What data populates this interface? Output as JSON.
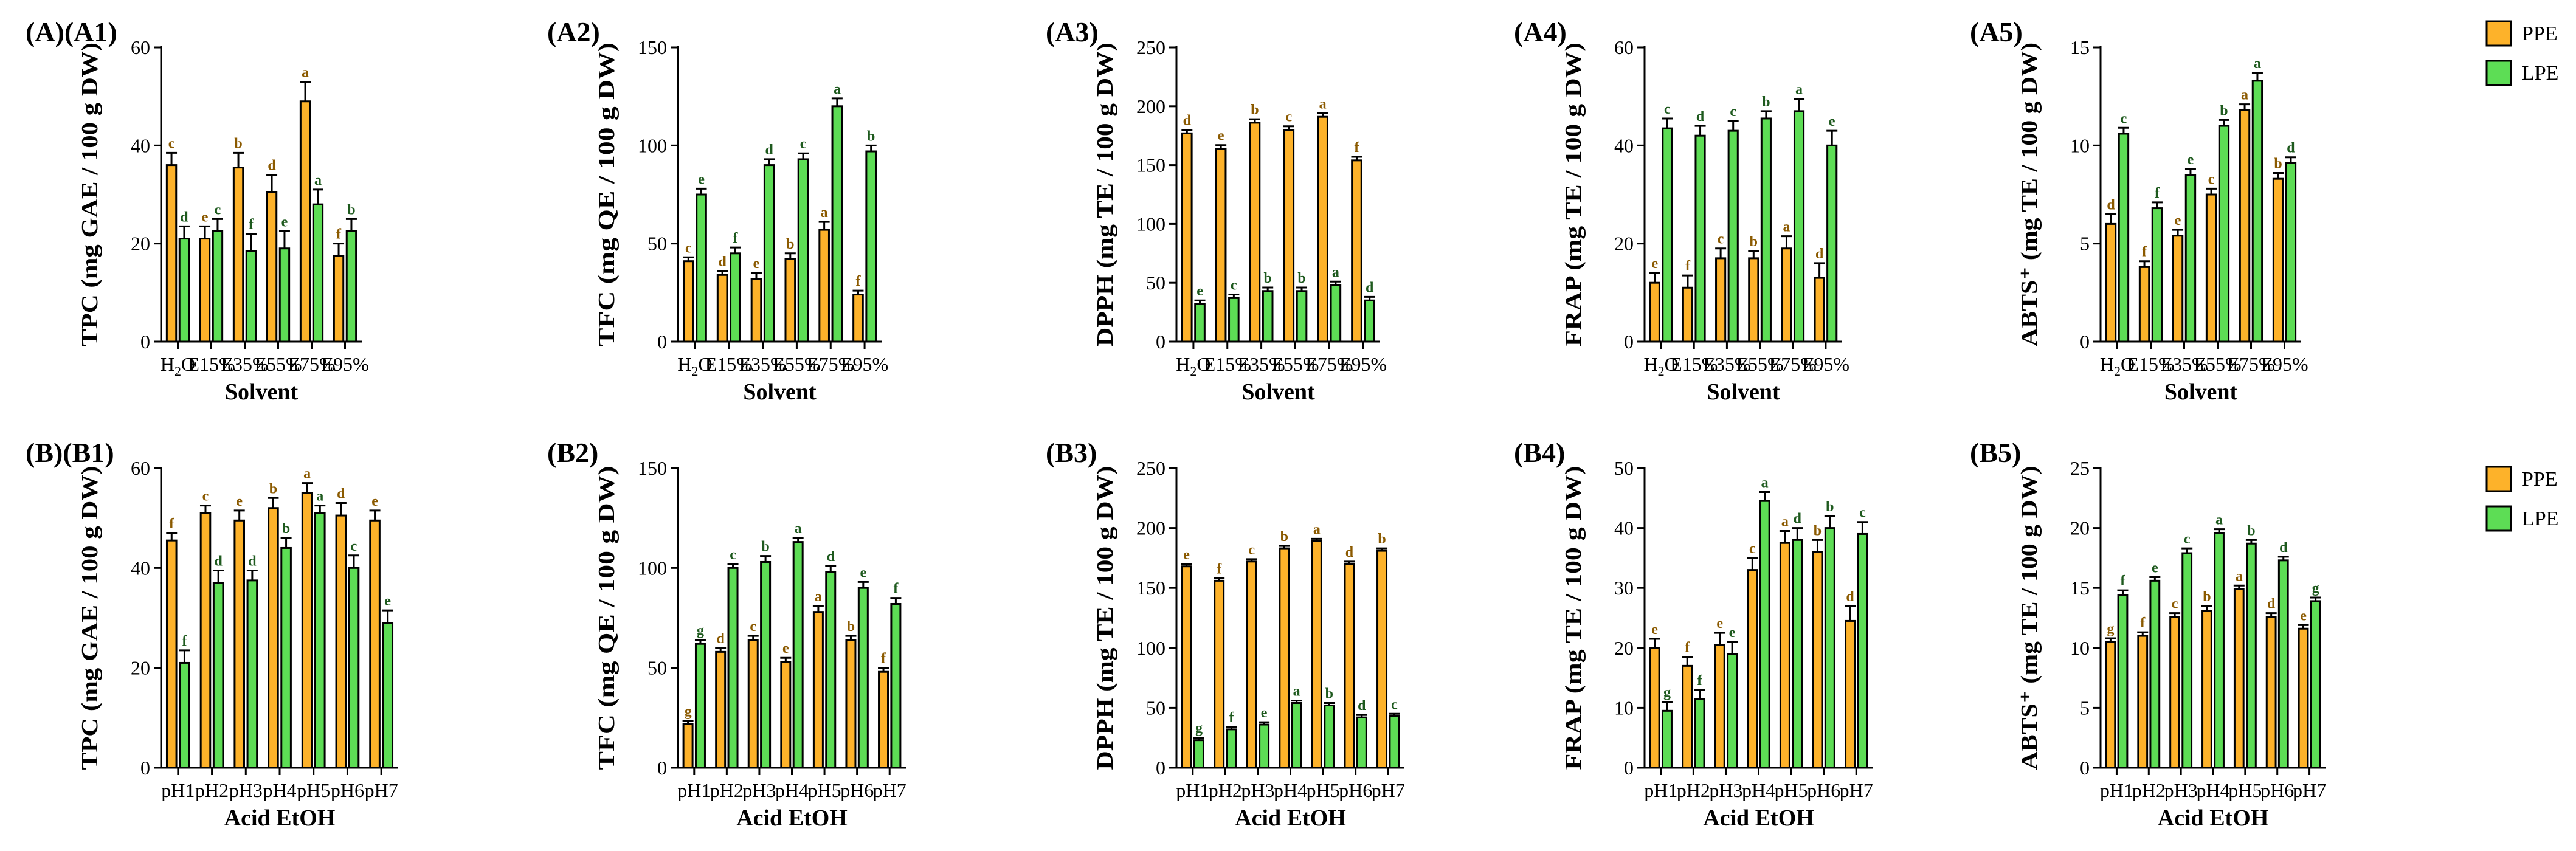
{
  "colors": {
    "ppe": "#FDB22A",
    "lpe": "#5DDD55",
    "ppe_letter": "#8B5A00",
    "lpe_letter": "#1E5A1E"
  },
  "legend": {
    "series": [
      "PPE",
      "LPE"
    ]
  },
  "chart_data": [
    {
      "id": "A1",
      "panel_label": "(A)(A1)",
      "type": "bar",
      "ylabel": "TPC (mg GAE / 100 g DW)",
      "xlabel": "Solvent",
      "categories": [
        "H₂O",
        "E15%",
        "E35%",
        "E55%",
        "E75%",
        "E95%"
      ],
      "ylim": [
        0,
        60
      ],
      "yticks": [
        0,
        20,
        40,
        60
      ],
      "series": [
        {
          "name": "PPE",
          "values": [
            36,
            21,
            35.5,
            30.5,
            49,
            17.5
          ],
          "errors": [
            2.5,
            2.5,
            3,
            3.5,
            4,
            2.5
          ],
          "letters": [
            "c",
            "e",
            "b",
            "d",
            "a",
            "f"
          ]
        },
        {
          "name": "LPE",
          "values": [
            21,
            22.5,
            18.5,
            19,
            28,
            22.5
          ],
          "errors": [
            2.5,
            2.5,
            3.5,
            3.5,
            3,
            2.5
          ],
          "letters": [
            "d",
            "c",
            "f",
            "e",
            "a",
            "b"
          ]
        }
      ]
    },
    {
      "id": "A2",
      "panel_label": "(A2)",
      "type": "bar",
      "ylabel": "TFC (mg QE / 100 g DW)",
      "xlabel": "Solvent",
      "categories": [
        "H₂O",
        "E15%",
        "E35%",
        "E55%",
        "E75%",
        "E95%"
      ],
      "ylim": [
        0,
        150
      ],
      "yticks": [
        0,
        50,
        100,
        150
      ],
      "series": [
        {
          "name": "PPE",
          "values": [
            41,
            34,
            32,
            42,
            57,
            24
          ],
          "errors": [
            2,
            2,
            3,
            3,
            4,
            2
          ],
          "letters": [
            "c",
            "d",
            "e",
            "b",
            "a",
            "f"
          ]
        },
        {
          "name": "LPE",
          "values": [
            75,
            45,
            90,
            93,
            120,
            97
          ],
          "errors": [
            3,
            3,
            3,
            3,
            4,
            3
          ],
          "letters": [
            "e",
            "f",
            "d",
            "c",
            "a",
            "b"
          ]
        }
      ]
    },
    {
      "id": "A3",
      "panel_label": "(A3)",
      "type": "bar",
      "ylabel": "DPPH (mg TE / 100 g DW)",
      "xlabel": "Solvent",
      "categories": [
        "H₂O",
        "E15%",
        "E35%",
        "E55%",
        "E75%",
        "E95%"
      ],
      "ylim": [
        0,
        250
      ],
      "yticks": [
        0,
        50,
        100,
        150,
        200,
        250
      ],
      "series": [
        {
          "name": "PPE",
          "values": [
            177,
            164,
            186,
            180,
            191,
            154
          ],
          "errors": [
            3,
            3,
            3,
            3,
            3,
            3
          ],
          "letters": [
            "d",
            "e",
            "b",
            "c",
            "a",
            "f"
          ]
        },
        {
          "name": "LPE",
          "values": [
            32,
            37,
            43,
            43,
            48,
            35
          ],
          "errors": [
            3,
            3,
            3,
            3,
            3,
            3
          ],
          "letters": [
            "e",
            "c",
            "b",
            "b",
            "a",
            "d"
          ]
        }
      ]
    },
    {
      "id": "A4",
      "panel_label": "(A4)",
      "type": "bar",
      "ylabel": "FRAP (mg TE / 100 g DW)",
      "xlabel": "Solvent",
      "categories": [
        "H₂O",
        "E15%",
        "E35%",
        "E55%",
        "E75%",
        "E95%"
      ],
      "ylim": [
        0,
        60
      ],
      "yticks": [
        0,
        20,
        40,
        60
      ],
      "series": [
        {
          "name": "PPE",
          "values": [
            12,
            11,
            17,
            17,
            19,
            13
          ],
          "errors": [
            2,
            2.5,
            2,
            1.5,
            2.5,
            3
          ],
          "letters": [
            "e",
            "f",
            "c",
            "b",
            "a",
            "d"
          ]
        },
        {
          "name": "LPE",
          "values": [
            43.5,
            42,
            43,
            45.5,
            47,
            40
          ],
          "errors": [
            2,
            2,
            2,
            1.5,
            2.5,
            3
          ],
          "letters": [
            "c",
            "d",
            "c",
            "b",
            "a",
            "e"
          ]
        }
      ]
    },
    {
      "id": "A5",
      "panel_label": "(A5)",
      "type": "bar",
      "ylabel": "ABTS⁺ (mg TE / 100 g DW)",
      "xlabel": "Solvent",
      "categories": [
        "H₂O",
        "E15%",
        "E35%",
        "E55%",
        "E75%",
        "E95%"
      ],
      "ylim": [
        0,
        15
      ],
      "yticks": [
        0,
        5,
        10,
        15
      ],
      "series": [
        {
          "name": "PPE",
          "values": [
            6,
            3.8,
            5.4,
            7.5,
            11.8,
            8.3
          ],
          "errors": [
            0.5,
            0.3,
            0.3,
            0.3,
            0.3,
            0.3
          ],
          "letters": [
            "d",
            "f",
            "e",
            "c",
            "a",
            "b"
          ]
        },
        {
          "name": "LPE",
          "values": [
            10.6,
            6.8,
            8.5,
            11,
            13.3,
            9.1
          ],
          "errors": [
            0.3,
            0.3,
            0.3,
            0.3,
            0.4,
            0.3
          ],
          "letters": [
            "c",
            "f",
            "e",
            "b",
            "a",
            "d"
          ]
        }
      ]
    },
    {
      "id": "B1",
      "panel_label": "(B)(B1)",
      "type": "bar",
      "ylabel": "TPC (mg GAE / 100 g DW)",
      "xlabel": "Acid EtOH",
      "categories": [
        "pH1",
        "pH2",
        "pH3",
        "pH4",
        "pH5",
        "pH6",
        "pH7"
      ],
      "ylim": [
        0,
        60
      ],
      "yticks": [
        0,
        20,
        40,
        60
      ],
      "series": [
        {
          "name": "PPE",
          "values": [
            45.5,
            51,
            49.5,
            52,
            55,
            50.5,
            49.5
          ],
          "errors": [
            1.5,
            1.5,
            2,
            2,
            2,
            2.5,
            2
          ],
          "letters": [
            "f",
            "c",
            "e",
            "b",
            "a",
            "d",
            "e"
          ]
        },
        {
          "name": "LPE",
          "values": [
            21,
            37,
            37.5,
            44,
            51,
            40,
            29
          ],
          "errors": [
            2.5,
            2.5,
            2,
            2,
            1.5,
            2.5,
            2.5
          ],
          "letters": [
            "f",
            "d",
            "d",
            "b",
            "a",
            "c",
            "e"
          ]
        }
      ]
    },
    {
      "id": "B2",
      "panel_label": "(B2)",
      "type": "bar",
      "ylabel": "TFC (mg QE / 100 g DW)",
      "xlabel": "Acid EtOH",
      "categories": [
        "pH1",
        "pH2",
        "pH3",
        "pH4",
        "pH5",
        "pH6",
        "pH7"
      ],
      "ylim": [
        0,
        150
      ],
      "yticks": [
        0,
        50,
        100,
        150
      ],
      "series": [
        {
          "name": "PPE",
          "values": [
            22,
            58,
            64,
            53,
            78,
            64,
            48
          ],
          "errors": [
            1.5,
            2,
            2,
            2,
            3,
            2,
            2
          ],
          "letters": [
            "g",
            "d",
            "c",
            "e",
            "a",
            "b",
            "f"
          ]
        },
        {
          "name": "LPE",
          "values": [
            62,
            100,
            103,
            113,
            98,
            90,
            82
          ],
          "errors": [
            2,
            2,
            3,
            2,
            3,
            3,
            3
          ],
          "letters": [
            "g",
            "c",
            "b",
            "a",
            "d",
            "e",
            "f"
          ]
        }
      ]
    },
    {
      "id": "B3",
      "panel_label": "(B3)",
      "type": "bar",
      "ylabel": "DPPH (mg TE / 100 g DW)",
      "xlabel": "Acid EtOH",
      "categories": [
        "pH1",
        "pH2",
        "pH3",
        "pH4",
        "pH5",
        "pH6",
        "pH7"
      ],
      "ylim": [
        0,
        250
      ],
      "yticks": [
        0,
        50,
        100,
        150,
        200,
        250
      ],
      "series": [
        {
          "name": "PPE",
          "values": [
            168,
            156,
            172,
            183,
            189,
            170,
            181
          ],
          "errors": [
            2,
            2,
            2,
            2,
            2,
            2,
            2
          ],
          "letters": [
            "e",
            "f",
            "c",
            "b",
            "a",
            "d",
            "b"
          ]
        },
        {
          "name": "LPE",
          "values": [
            23,
            32,
            36,
            54,
            52,
            42,
            43
          ],
          "errors": [
            2,
            2,
            2,
            2,
            2,
            2,
            2
          ],
          "letters": [
            "g",
            "f",
            "e",
            "a",
            "b",
            "d",
            "c"
          ]
        }
      ]
    },
    {
      "id": "B4",
      "panel_label": "(B4)",
      "type": "bar",
      "ylabel": "FRAP (mg TE / 100 g DW)",
      "xlabel": "Acid EtOH",
      "categories": [
        "pH1",
        "pH2",
        "pH3",
        "pH4",
        "pH5",
        "pH6",
        "pH7"
      ],
      "ylim": [
        0,
        50
      ],
      "yticks": [
        0,
        10,
        20,
        30,
        40,
        50
      ],
      "series": [
        {
          "name": "PPE",
          "values": [
            20,
            17,
            20.5,
            33,
            37.5,
            36,
            24.5
          ],
          "errors": [
            1.5,
            1.5,
            2,
            2,
            2,
            2,
            2.5
          ],
          "letters": [
            "e",
            "f",
            "e",
            "c",
            "a",
            "b",
            "d"
          ]
        },
        {
          "name": "LPE",
          "values": [
            9.5,
            11.5,
            19,
            44.5,
            38,
            40,
            39
          ],
          "errors": [
            1.5,
            1.5,
            2,
            1.5,
            2,
            2,
            2
          ],
          "letters": [
            "g",
            "f",
            "e",
            "a",
            "d",
            "b",
            "c"
          ]
        }
      ]
    },
    {
      "id": "B5",
      "panel_label": "(B5)",
      "type": "bar",
      "ylabel": "ABTS⁺ (mg TE / 100 g DW)",
      "xlabel": "Acid EtOH",
      "categories": [
        "pH1",
        "pH2",
        "pH3",
        "pH4",
        "pH5",
        "pH6",
        "pH7"
      ],
      "ylim": [
        0,
        25
      ],
      "yticks": [
        0,
        5,
        10,
        15,
        20,
        25
      ],
      "series": [
        {
          "name": "PPE",
          "values": [
            10.5,
            11,
            12.6,
            13.1,
            14.9,
            12.6,
            11.6
          ],
          "errors": [
            0.3,
            0.3,
            0.3,
            0.4,
            0.3,
            0.3,
            0.3
          ],
          "letters": [
            "g",
            "f",
            "c",
            "b",
            "a",
            "d",
            "e"
          ]
        },
        {
          "name": "LPE",
          "values": [
            14.4,
            15.6,
            17.9,
            19.6,
            18.7,
            17.3,
            13.9
          ],
          "errors": [
            0.4,
            0.3,
            0.4,
            0.3,
            0.3,
            0.3,
            0.3
          ],
          "letters": [
            "f",
            "e",
            "c",
            "a",
            "b",
            "d",
            "g"
          ]
        }
      ]
    }
  ]
}
